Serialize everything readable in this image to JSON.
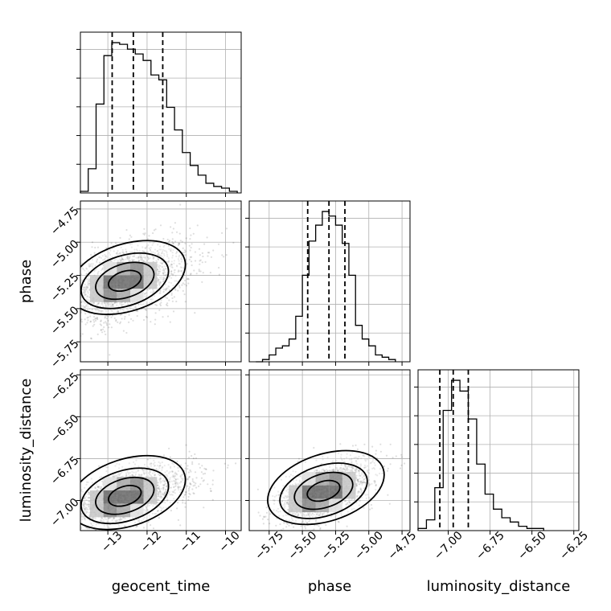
{
  "chart_data": {
    "type": "corner",
    "parameters": [
      "geocent_time",
      "phase",
      "luminosity_distance"
    ],
    "grid": true,
    "quantile_lines": "dashed",
    "axes": {
      "geocent_time": {
        "ylim_hist": [
          0,
          1
        ],
        "lim": [
          -13.7,
          -9.6
        ],
        "ticks": [
          -13,
          -12,
          -11,
          -10
        ],
        "tick_labels": [
          "−13",
          "−12",
          "−11",
          "−10"
        ]
      },
      "phase": {
        "lim": [
          -5.9,
          -4.69
        ],
        "ticks": [
          -5.75,
          -5.5,
          -5.25,
          -5.0,
          -4.75
        ],
        "tick_labels": [
          "−5.75",
          "−5.50",
          "−5.25",
          "−5.00",
          "−4.75"
        ]
      },
      "luminosity_distance": {
        "lim": [
          -7.18,
          -6.22
        ],
        "ticks": [
          -7.0,
          -6.75,
          -6.5,
          -6.25
        ],
        "tick_labels": [
          "−7.00",
          "−6.75",
          "−6.50",
          "−6.25"
        ]
      }
    },
    "histograms": [
      {
        "parameter": "geocent_time",
        "bin_edges": [
          -13.7,
          -13.5,
          -13.3,
          -13.1,
          -12.9,
          -12.7,
          -12.5,
          -12.3,
          -12.1,
          -11.9,
          -11.7,
          -11.5,
          -11.3,
          -11.1,
          -10.9,
          -10.7,
          -10.5,
          -10.3,
          -10.1,
          -9.9,
          -9.7
        ],
        "counts": [
          0.01,
          0.15,
          0.55,
          0.85,
          0.93,
          0.92,
          0.89,
          0.86,
          0.82,
          0.73,
          0.7,
          0.53,
          0.39,
          0.25,
          0.17,
          0.11,
          0.06,
          0.04,
          0.03,
          0.01
        ],
        "quantiles": [
          -12.89,
          -12.35,
          -11.6
        ]
      },
      {
        "parameter": "phase",
        "bin_edges": [
          -5.85,
          -5.8,
          -5.75,
          -5.7,
          -5.65,
          -5.6,
          -5.55,
          -5.5,
          -5.45,
          -5.4,
          -5.35,
          -5.3,
          -5.25,
          -5.2,
          -5.15,
          -5.1,
          -5.05,
          -5.0,
          -4.95,
          -4.9,
          -4.85,
          -4.8
        ],
        "counts": [
          0.0,
          0.01,
          0.03,
          0.06,
          0.07,
          0.1,
          0.2,
          0.38,
          0.53,
          0.6,
          0.66,
          0.64,
          0.6,
          0.52,
          0.38,
          0.16,
          0.1,
          0.07,
          0.03,
          0.02,
          0.01
        ],
        "quantiles": [
          -5.46,
          -5.3,
          -5.18
        ]
      },
      {
        "parameter": "luminosity_distance",
        "bin_edges": [
          -7.18,
          -7.13,
          -7.08,
          -7.03,
          -6.98,
          -6.93,
          -6.88,
          -6.83,
          -6.78,
          -6.73,
          -6.68,
          -6.63,
          -6.58,
          -6.53,
          -6.48,
          -6.43
        ],
        "counts": [
          0.01,
          0.05,
          0.2,
          0.56,
          0.7,
          0.65,
          0.52,
          0.31,
          0.17,
          0.1,
          0.06,
          0.04,
          0.02,
          0.01,
          0.01
        ],
        "quantiles": [
          -7.05,
          -6.97,
          -6.88
        ]
      }
    ],
    "scatter_panels": [
      {
        "x": "geocent_time",
        "y": "phase",
        "center": [
          -12.6,
          -5.3
        ],
        "sigma": [
          0.7,
          0.15
        ],
        "correlation": 0.45
      },
      {
        "x": "geocent_time",
        "y": "luminosity_distance",
        "center": [
          -12.6,
          -6.98
        ],
        "sigma": [
          0.7,
          0.09
        ],
        "correlation": 0.55
      },
      {
        "x": "phase",
        "y": "luminosity_distance",
        "center": [
          -5.35,
          -6.95
        ],
        "sigma": [
          0.15,
          0.09
        ],
        "correlation": 0.55
      }
    ],
    "contour_levels": [
      "0.5σ",
      "1σ",
      "1.5σ",
      "2σ"
    ]
  }
}
